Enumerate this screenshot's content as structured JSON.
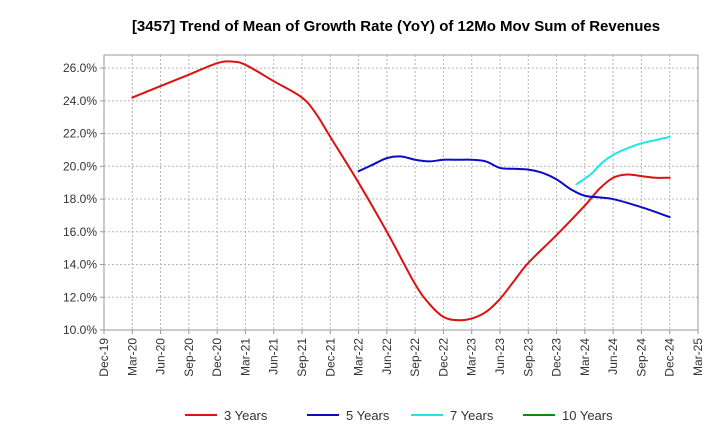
{
  "chart_data": {
    "type": "line",
    "title": "[3457]  Trend of Mean of Growth Rate (YoY) of 12Mo Mov Sum of Revenues",
    "xlabel": "",
    "ylabel": "",
    "ylim": [
      10.0,
      26.8
    ],
    "y_ticks": [
      10.0,
      12.0,
      14.0,
      16.0,
      18.0,
      20.0,
      22.0,
      24.0,
      26.0
    ],
    "y_tick_labels": [
      "10.0%",
      "12.0%",
      "14.0%",
      "16.0%",
      "18.0%",
      "20.0%",
      "22.0%",
      "24.0%",
      "26.0%"
    ],
    "x_tick_labels": [
      "Dec-19",
      "Mar-20",
      "Jun-20",
      "Sep-20",
      "Dec-20",
      "Mar-21",
      "Jun-21",
      "Sep-21",
      "Dec-21",
      "Mar-22",
      "Jun-22",
      "Sep-22",
      "Dec-22",
      "Mar-23",
      "Jun-23",
      "Sep-23",
      "Dec-23",
      "Mar-24",
      "Jun-24",
      "Sep-24",
      "Dec-24",
      "Mar-25"
    ],
    "grid": true,
    "legend_position": "bottom",
    "series": [
      {
        "name": "3 Years",
        "color": "#dd1111",
        "points": [
          [
            1,
            24.2
          ],
          [
            2,
            24.9
          ],
          [
            3,
            25.6
          ],
          [
            4,
            26.3
          ],
          [
            4.5,
            26.4
          ],
          [
            5,
            26.2
          ],
          [
            6,
            25.2
          ],
          [
            7,
            24.2
          ],
          [
            7.5,
            23.2
          ],
          [
            8,
            21.8
          ],
          [
            9,
            19.0
          ],
          [
            10,
            16.0
          ],
          [
            11,
            12.8
          ],
          [
            11.5,
            11.6
          ],
          [
            12,
            10.8
          ],
          [
            12.5,
            10.6
          ],
          [
            13,
            10.7
          ],
          [
            13.5,
            11.1
          ],
          [
            14,
            11.9
          ],
          [
            14.5,
            13.0
          ],
          [
            15,
            14.1
          ],
          [
            16,
            15.8
          ],
          [
            17,
            17.6
          ],
          [
            17.5,
            18.6
          ],
          [
            18,
            19.3
          ],
          [
            18.5,
            19.5
          ],
          [
            19,
            19.4
          ],
          [
            19.5,
            19.3
          ],
          [
            20,
            19.3
          ]
        ]
      },
      {
        "name": "5 Years",
        "color": "#0b0bc8",
        "points": [
          [
            9,
            19.7
          ],
          [
            9.5,
            20.1
          ],
          [
            10,
            20.5
          ],
          [
            10.5,
            20.6
          ],
          [
            11,
            20.4
          ],
          [
            11.5,
            20.3
          ],
          [
            12,
            20.4
          ],
          [
            12.5,
            20.4
          ],
          [
            13,
            20.4
          ],
          [
            13.5,
            20.3
          ],
          [
            14,
            19.9
          ],
          [
            14.5,
            19.85
          ],
          [
            15,
            19.8
          ],
          [
            15.5,
            19.6
          ],
          [
            16,
            19.2
          ],
          [
            16.5,
            18.6
          ],
          [
            17,
            18.2
          ],
          [
            17.5,
            18.1
          ],
          [
            18,
            18.0
          ],
          [
            19,
            17.5
          ],
          [
            20,
            16.9
          ]
        ]
      },
      {
        "name": "7 Years",
        "color": "#22e5e5",
        "points": [
          [
            16.7,
            18.9
          ],
          [
            17.2,
            19.5
          ],
          [
            17.6,
            20.2
          ],
          [
            18,
            20.7
          ],
          [
            18.5,
            21.1
          ],
          [
            19,
            21.4
          ],
          [
            19.5,
            21.6
          ],
          [
            20,
            21.8
          ]
        ]
      },
      {
        "name": "10 Years",
        "color": "#118811",
        "points": []
      }
    ]
  }
}
